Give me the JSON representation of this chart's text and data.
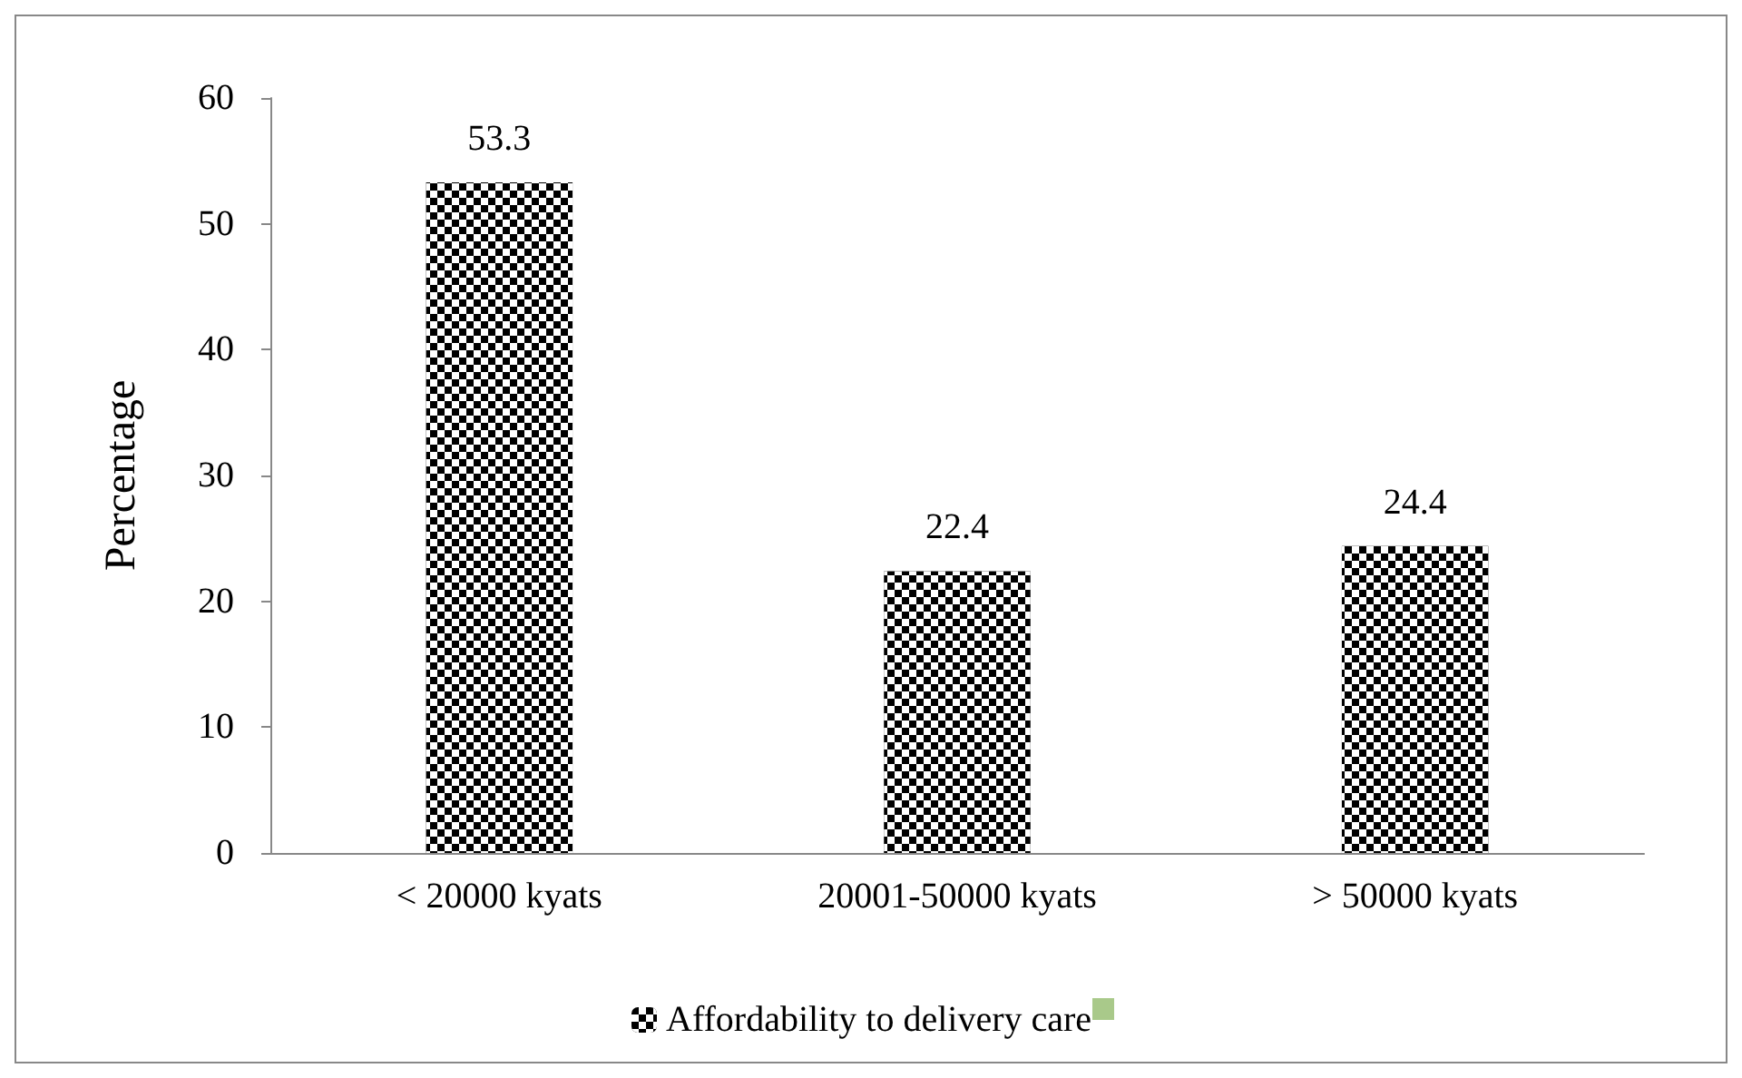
{
  "chart_data": {
    "type": "bar",
    "ylabel": "Percentage",
    "categories": [
      "< 20000 kyats",
      "20001-50000 kyats",
      "> 50000 kyats"
    ],
    "series": [
      {
        "name": "Affordability to delivery care",
        "color": "#000000",
        "values": [
          53.3,
          22.4,
          24.4
        ]
      }
    ],
    "ylim": [
      0,
      60
    ],
    "yticks": [
      0,
      10,
      20,
      30,
      40,
      50,
      60
    ],
    "grid": false,
    "legend": "bottom",
    "data_labels": true
  }
}
